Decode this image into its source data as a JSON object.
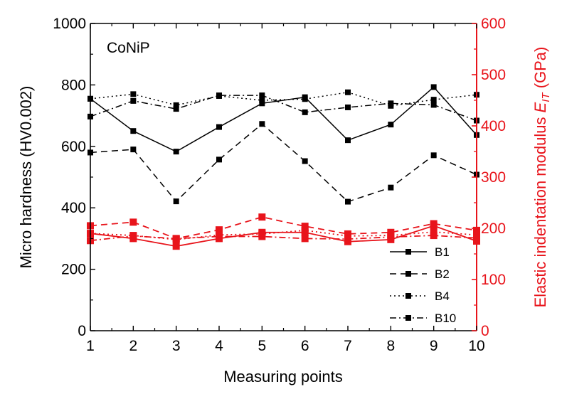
{
  "chart_data": {
    "type": "line",
    "annotation": "CoNiP",
    "xlabel": "Measuring points",
    "ylabel": "Micro hardness (HV0.002)",
    "y2label_main": "Elastic indentation modulus ",
    "y2label_symbol": "E",
    "y2label_sub": "IT",
    "y2label_unit": " (GPa)",
    "xlim": [
      1,
      10
    ],
    "ylim": [
      0,
      1000
    ],
    "y2lim": [
      0,
      600
    ],
    "xticks": [
      "1",
      "2",
      "3",
      "4",
      "5",
      "6",
      "7",
      "8",
      "9",
      "10"
    ],
    "yticks": [
      "0",
      "200",
      "400",
      "600",
      "800",
      "1000"
    ],
    "y2ticks": [
      "0",
      "100",
      "200",
      "300",
      "400",
      "500",
      "600"
    ],
    "x": [
      1,
      2,
      3,
      4,
      5,
      6,
      7,
      8,
      9,
      10
    ],
    "series": [
      {
        "name": "B1",
        "axis": "left",
        "color": "#000000",
        "dash": "solid",
        "values": [
          755,
          650,
          583,
          663,
          740,
          760,
          620,
          671,
          793,
          637
        ]
      },
      {
        "name": "B2",
        "axis": "left",
        "color": "#000000",
        "dash": "dashed",
        "values": [
          580,
          590,
          421,
          557,
          673,
          552,
          420,
          466,
          571,
          508
        ]
      },
      {
        "name": "B4",
        "axis": "left",
        "color": "#000000",
        "dash": "dotted",
        "values": [
          755,
          770,
          734,
          764,
          750,
          754,
          776,
          732,
          752,
          768
        ]
      },
      {
        "name": "B10",
        "axis": "left",
        "color": "#000000",
        "dash": "dashdot",
        "values": [
          697,
          748,
          722,
          766,
          766,
          711,
          727,
          740,
          735,
          684
        ]
      },
      {
        "name": "B1",
        "axis": "right",
        "color": "#e8141b",
        "dash": "solid",
        "values": [
          190,
          180,
          165,
          180,
          192,
          192,
          174,
          178,
          205,
          175
        ]
      },
      {
        "name": "B2",
        "axis": "right",
        "color": "#e8141b",
        "dash": "dashed",
        "values": [
          205,
          212,
          180,
          197,
          222,
          204,
          189,
          192,
          209,
          196
        ]
      },
      {
        "name": "B4",
        "axis": "right",
        "color": "#e8141b",
        "dash": "dotted",
        "values": [
          190,
          186,
          178,
          187,
          189,
          196,
          185,
          186,
          193,
          187
        ]
      },
      {
        "name": "B10",
        "axis": "right",
        "color": "#e8141b",
        "dash": "dashdot",
        "values": [
          176,
          185,
          180,
          184,
          184,
          180,
          179,
          183,
          186,
          181
        ]
      }
    ],
    "legend": [
      {
        "label": "B1",
        "dash": "solid"
      },
      {
        "label": "B2",
        "dash": "dashed"
      },
      {
        "label": "B4",
        "dash": "dotted"
      },
      {
        "label": "B10",
        "dash": "dashdot"
      }
    ],
    "colors": {
      "left_axis": "#000000",
      "right_axis": "#e8141b"
    }
  }
}
